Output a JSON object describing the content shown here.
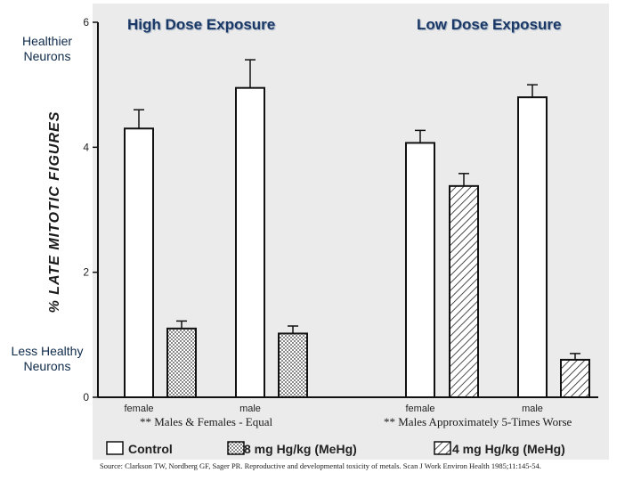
{
  "side_labels": {
    "top": "Healthier Neurons",
    "bottom": "Less Healthy Neurons"
  },
  "panel_titles": {
    "left": "High Dose Exposure",
    "right": "Low Dose Exposure"
  },
  "notes": {
    "left": "** Males & Females - Equal",
    "right": "** Males Approximately  5-Times Worse"
  },
  "source": "Source: Clarkson TW, Nordberg GF, Sager PR. Reproductive and developmental toxicity of metals. Scan J Work Environ Health 1985;11:145-54.",
  "colors": {
    "title": "#1a3866",
    "side_label": "#0e2a4a",
    "bar_fill": "#ffffff",
    "ink": "#111111"
  },
  "chart_data": {
    "type": "bar",
    "ylabel": "% LATE MITOTIC FIGURES",
    "ylim": [
      0,
      6
    ],
    "yticks": [
      0,
      2,
      4,
      6
    ],
    "legend_position": "bottom",
    "legend": [
      {
        "label": "Control",
        "pattern": "plain"
      },
      {
        "label": "8  mg  Hg/kg  (MeHg)",
        "pattern": "dots"
      },
      {
        "label": "4  mg  Hg/kg  (MeHg)",
        "pattern": "hatch"
      }
    ],
    "groups": [
      {
        "label": "female",
        "panel": "High Dose Exposure",
        "bars": [
          {
            "series": "Control",
            "value": 4.3,
            "error": 0.3
          },
          {
            "series": "8 mg Hg/kg (MeHg)",
            "value": 1.1,
            "error": 0.12
          }
        ]
      },
      {
        "label": "male",
        "panel": "High Dose Exposure",
        "bars": [
          {
            "series": "Control",
            "value": 4.95,
            "error": 0.45
          },
          {
            "series": "8 mg Hg/kg (MeHg)",
            "value": 1.02,
            "error": 0.12
          }
        ]
      },
      {
        "label": "female",
        "panel": "Low Dose Exposure",
        "bars": [
          {
            "series": "Control",
            "value": 4.07,
            "error": 0.2
          },
          {
            "series": "4 mg Hg/kg (MeHg)",
            "value": 3.38,
            "error": 0.2
          }
        ]
      },
      {
        "label": "male",
        "panel": "Low Dose Exposure",
        "bars": [
          {
            "series": "Control",
            "value": 4.8,
            "error": 0.2
          },
          {
            "series": "4 mg Hg/kg (MeHg)",
            "value": 0.6,
            "error": 0.1
          }
        ]
      }
    ]
  }
}
